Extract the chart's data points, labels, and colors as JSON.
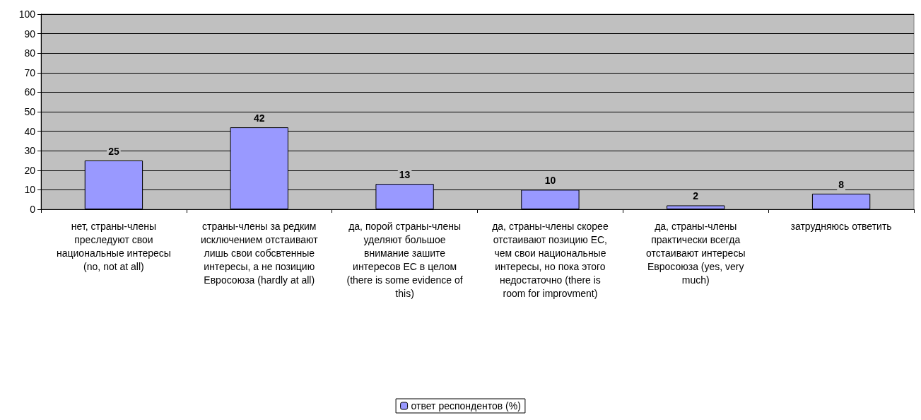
{
  "chart_data": {
    "type": "bar",
    "categories": [
      "нет, страны-члены преследуют свои национальные интересы (no, not at all)",
      "страны-члены за редким исключением отстаивают лишь свои собсвтенные интересы, а не позицию Евросоюза (hardly at all)",
      "да, порой страны-члены уделяют большое внимание зашите интересов ЕС в целом (there is some evidence of this)",
      "да, страны-члены скорее отстаивают позицию ЕС, чем свои национальные интересы, но пока этого недостаточно (there is room for improvment)",
      "да, страны-члены практически всегда отстаивают интересы Евросоюза (yes, very much)",
      "затрудняюсь ответить"
    ],
    "series": [
      {
        "name": "ответ респондентов (%)",
        "color": "#9999ff",
        "values": [
          25,
          42,
          13,
          10,
          2,
          8
        ]
      }
    ],
    "ylim": [
      0,
      100
    ],
    "yticks": [
      0,
      10,
      20,
      30,
      40,
      50,
      60,
      70,
      80,
      90,
      100
    ],
    "grid": "y",
    "legend": "bottom",
    "data_labels": true
  }
}
